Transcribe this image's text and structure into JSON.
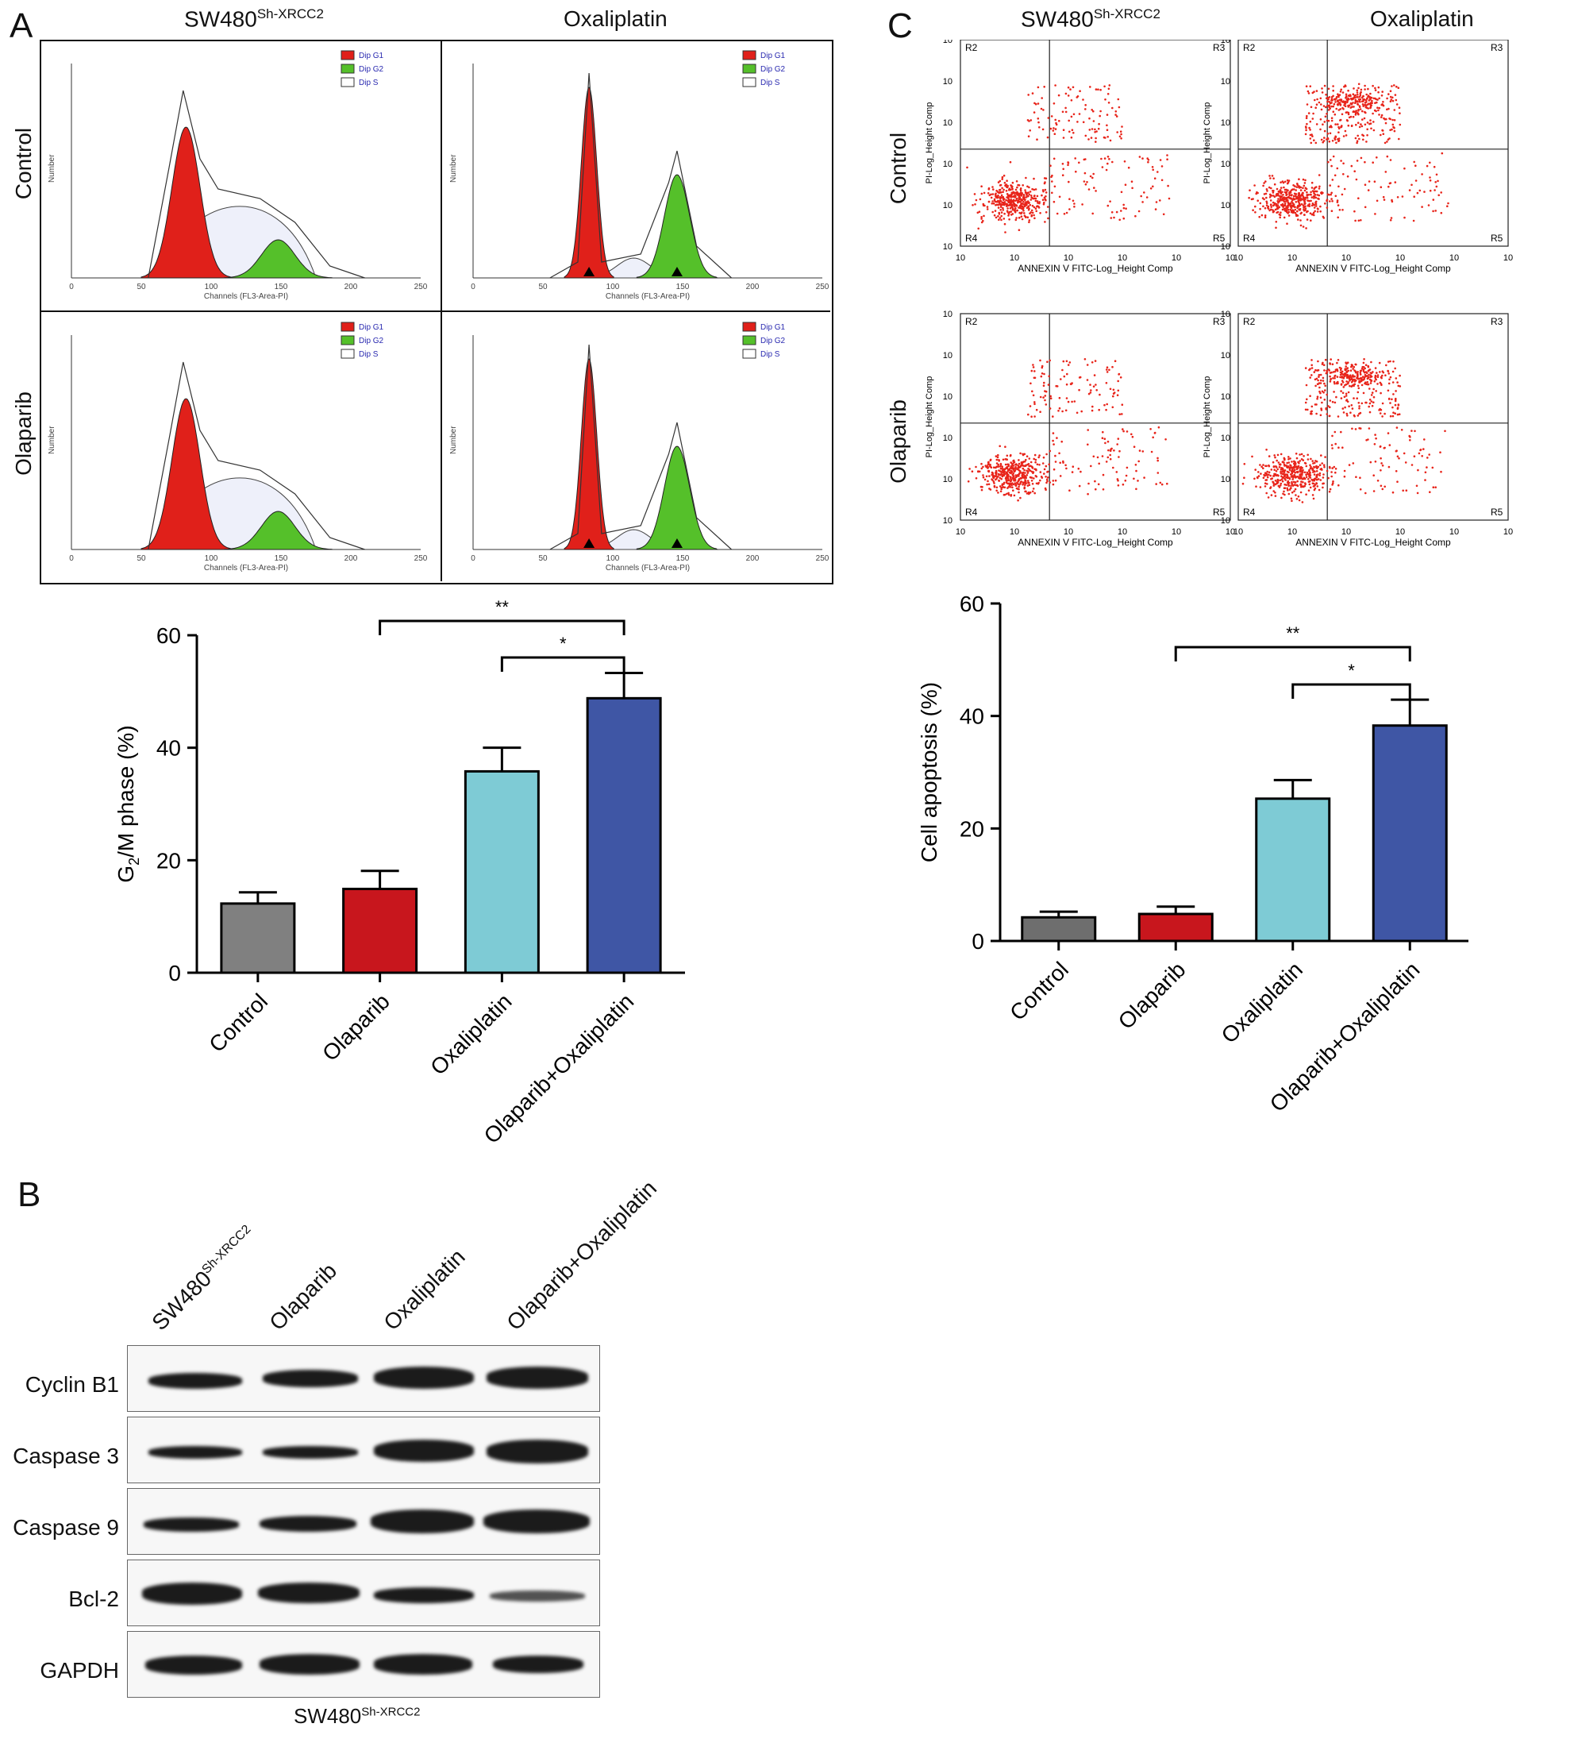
{
  "panels": {
    "a": {
      "letter": "A",
      "col1": "SW480",
      "col1_sup": "Sh-XRCC2",
      "col2": "Oxaliplatin",
      "row1": "Control",
      "row2": "Olaparib",
      "legend": [
        "Dip G1",
        "Dip G2",
        "Dip S"
      ],
      "hist_xlabel": "Channels (FL3-Area-PI)",
      "hist_ylabel": "Number",
      "hist_xticks": [
        "0",
        "50",
        "100",
        "150",
        "200",
        "250"
      ]
    },
    "b": {
      "letter": "B",
      "lanes": [
        "SW480",
        "Olaparib",
        "Oxaliplatin",
        "Olaparib+Oxaliplatin"
      ],
      "lane1_sup": "Sh-XRCC2",
      "proteins": [
        "Cyclin B1",
        "Caspase 3",
        "Caspase 9",
        "Bcl-2",
        "GAPDH"
      ],
      "caption": "SW480",
      "caption_sup": "Sh-XRCC2"
    },
    "c": {
      "letter": "C",
      "col1": "SW480",
      "col1_sup": "Sh-XRCC2",
      "col2": "Oxaliplatin",
      "row1": "Control",
      "row2": "Olaparib",
      "quad_labels": [
        "R2",
        "R3",
        "R4",
        "R5"
      ],
      "flow_xlabel": "ANNEXIN V FITC-Log_Height Comp",
      "flow_ylabel": "PI-Log_Height Comp"
    }
  },
  "chart_data": [
    {
      "type": "bar",
      "title": "",
      "categories": [
        "Control",
        "Olaparib",
        "Oxaliplatin",
        "Olaparib+Oxaliplatin"
      ],
      "values": [
        12.3,
        14.9,
        35.8,
        48.8
      ],
      "errors": [
        2.0,
        3.2,
        4.2,
        4.5
      ],
      "colors": [
        "#808080",
        "#c8161d",
        "#7ecbd5",
        "#3f56a5"
      ],
      "xlabel": "",
      "ylabel": "G2/M phase (%)",
      "ylim": [
        0,
        60
      ],
      "yticks": [
        0,
        20,
        40,
        60
      ],
      "significance": [
        {
          "from": "Olaparib",
          "to": "Olaparib+Oxaliplatin",
          "label": "**"
        },
        {
          "from": "Oxaliplatin",
          "to": "Olaparib+Oxaliplatin",
          "label": "*"
        }
      ]
    },
    {
      "type": "bar",
      "title": "",
      "categories": [
        "Control",
        "Olaparib",
        "Oxaliplatin",
        "Olaparib+Oxaliplatin"
      ],
      "values": [
        4.2,
        4.8,
        25.3,
        38.3
      ],
      "errors": [
        1.0,
        1.3,
        3.3,
        4.6
      ],
      "colors": [
        "#6e6e6e",
        "#c8161d",
        "#7ecbd5",
        "#3f56a5"
      ],
      "xlabel": "",
      "ylabel": "Cell apoptosis (%)",
      "ylim": [
        0,
        60
      ],
      "yticks": [
        0,
        20,
        40,
        60
      ],
      "significance": [
        {
          "from": "Olaparib",
          "to": "Olaparib+Oxaliplatin",
          "label": "**"
        },
        {
          "from": "Oxaliplatin",
          "to": "Olaparib+Oxaliplatin",
          "label": "*"
        }
      ]
    }
  ]
}
